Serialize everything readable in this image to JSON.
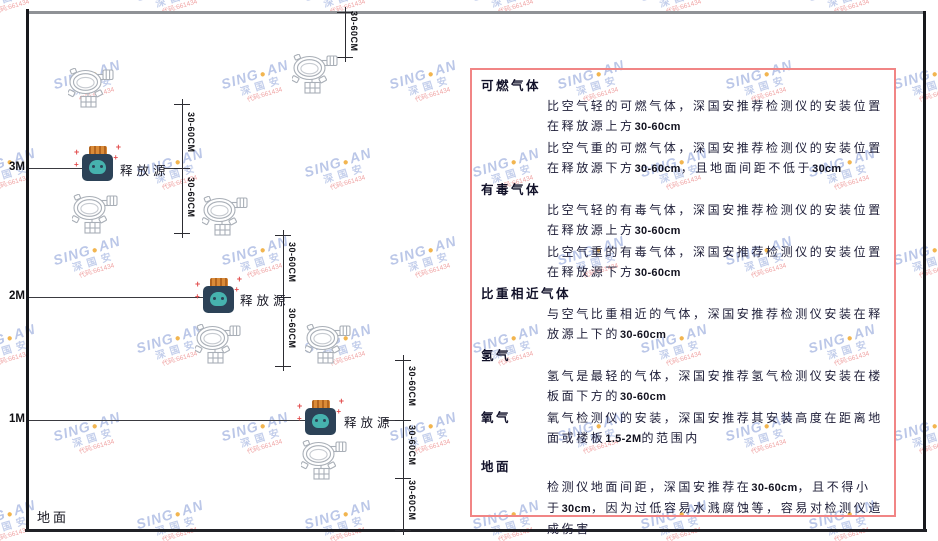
{
  "diagram": {
    "height_labels": [
      "3M",
      "2M",
      "1M"
    ],
    "ground_label": "地面",
    "release_source_label": "释放源",
    "dimension_label": "30-60CM"
  },
  "panel": {
    "border_color": "#f18585",
    "sections": [
      {
        "heading": "可燃气体",
        "inline": false,
        "paragraphs": [
          "比空气轻的可燃气体，深国安推荐检测仪的安装位置在释放源上方30-60cm",
          "比空气重的可燃气体，深国安推荐检测仪的安装位置在释放源下方30-60cm，且地面间距不低于30cm"
        ]
      },
      {
        "heading": "有毒气体",
        "inline": false,
        "paragraphs": [
          "比空气轻的有毒气体，深国安推荐检测仪的安装位置在释放源上方30-60cm",
          "比空气重的有毒气体，深国安推荐检测仪的安装位置在释放源下方30-60cm"
        ]
      },
      {
        "heading": "比重相近气体",
        "inline": false,
        "paragraphs": [
          "与空气比重相近的气体，深国安推荐检测仪安装在释放源上下的30-60cm"
        ]
      },
      {
        "heading": "氢气",
        "inline": false,
        "paragraphs": [
          "氢气是最轻的气体，深国安推荐氢气检测仪安装在楼板面下方的30-60cm"
        ]
      },
      {
        "heading": "氧气",
        "inline": true,
        "paragraphs": [
          "氧气检测仪的安装，深国安推荐其安装高度在距离地面或楼板1.5-2M的范围内"
        ]
      },
      {
        "heading": "地面",
        "inline": false,
        "paragraphs": [
          "检测仪地面间距，深国安推荐在30-60cm，且不得小于30cm，因为过低容易水溅腐蚀等，容易对检测仪造成伤害"
        ]
      }
    ]
  },
  "watermark": {
    "brand_left": "SING",
    "brand_right": "AN",
    "dot": "●",
    "brand_cjk": "深国安",
    "code_text": "代码:661434",
    "brand_color": "#5472c6",
    "dot_color": "#f0a830",
    "code_color": "#e25050"
  },
  "colors": {
    "panel_border": "#f18585",
    "wall": "#17181c",
    "ceiling": "#8f9296",
    "source_body": "#2c4257",
    "source_cap": "#c0722c",
    "source_blob": "#46b2ae",
    "detector_outline": "#a9afb7",
    "sparkle": "#e24c4c"
  }
}
